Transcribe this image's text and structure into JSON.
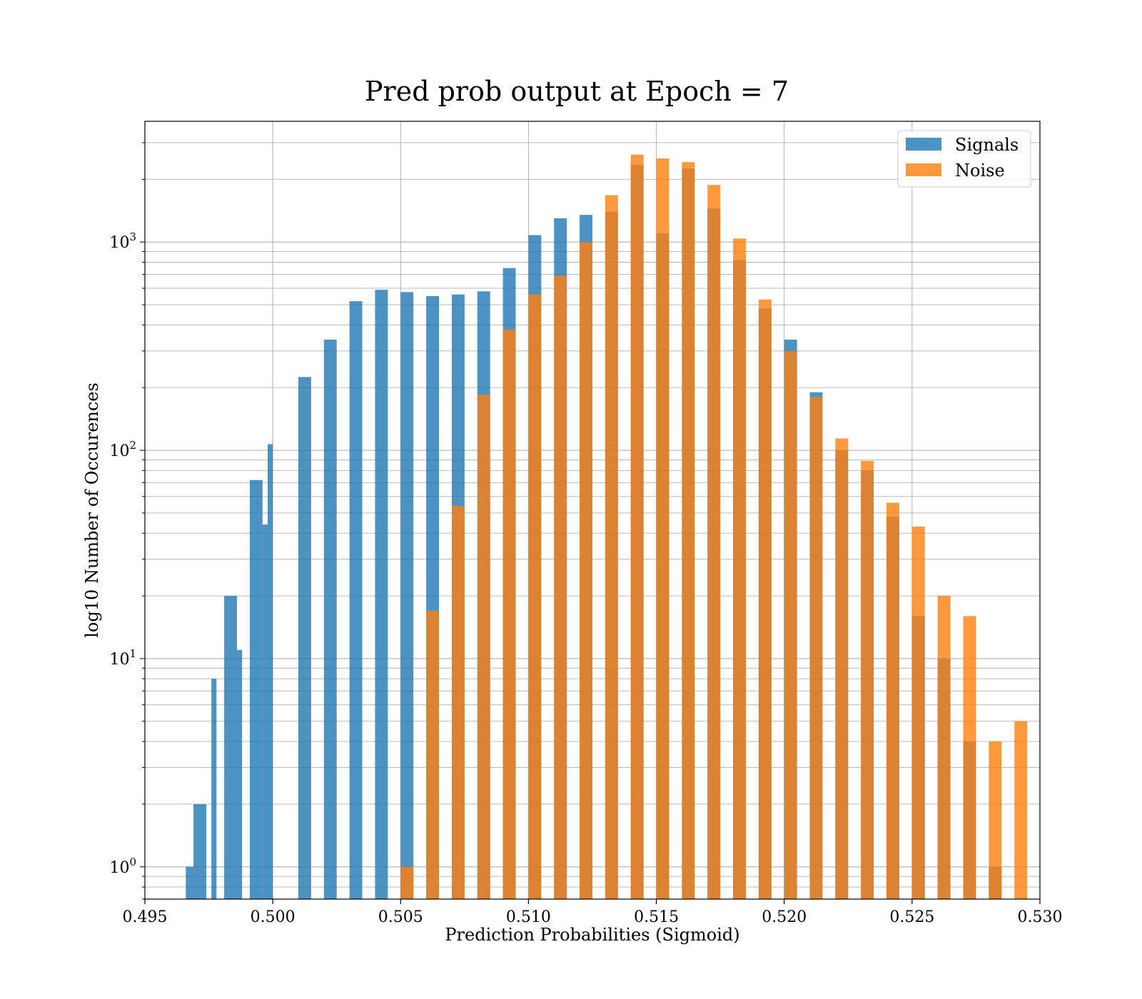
{
  "chart_data": {
    "type": "bar",
    "title": "Pred prob output at Epoch = 7",
    "xlabel": "Prediction Probabilities (Sigmoid)",
    "ylabel": "log10 Number of Occurences",
    "xlim": [
      0.495,
      0.53
    ],
    "ylim": [
      0.7,
      3800
    ],
    "yscale": "log",
    "x_ticks": [
      "0.495",
      "0.500",
      "0.505",
      "0.510",
      "0.515",
      "0.520",
      "0.525",
      "0.530"
    ],
    "y_ticks": [
      {
        "base": "10",
        "exp": "0",
        "value": 1
      },
      {
        "base": "10",
        "exp": "1",
        "value": 10
      },
      {
        "base": "10",
        "exp": "2",
        "value": 100
      },
      {
        "base": "10",
        "exp": "3",
        "value": 1000
      }
    ],
    "grid": true,
    "legend_position": "top-right",
    "series": [
      {
        "name": "Signals",
        "color": "#1f77b4",
        "bins": [
          {
            "x0": 0.4966,
            "x1": 0.4969,
            "value": 1
          },
          {
            "x0": 0.4969,
            "x1": 0.4974,
            "value": 2
          },
          {
            "x0": 0.4976,
            "x1": 0.4978,
            "value": 8
          },
          {
            "x0": 0.4981,
            "x1": 0.4986,
            "value": 20
          },
          {
            "x0": 0.4986,
            "x1": 0.4988,
            "value": 11
          },
          {
            "x0": 0.4991,
            "x1": 0.4996,
            "value": 72
          },
          {
            "x0": 0.4996,
            "x1": 0.4998,
            "value": 44
          },
          {
            "x0": 0.4998,
            "x1": 0.5,
            "value": 107
          },
          {
            "x0": 0.501,
            "x1": 0.5015,
            "value": 225
          },
          {
            "x0": 0.502,
            "x1": 0.5025,
            "value": 340
          },
          {
            "x0": 0.503,
            "x1": 0.5035,
            "value": 520
          },
          {
            "x0": 0.504,
            "x1": 0.5045,
            "value": 590
          },
          {
            "x0": 0.505,
            "x1": 0.5055,
            "value": 575
          },
          {
            "x0": 0.506,
            "x1": 0.5065,
            "value": 550
          },
          {
            "x0": 0.507,
            "x1": 0.5075,
            "value": 560
          },
          {
            "x0": 0.508,
            "x1": 0.5085,
            "value": 580
          },
          {
            "x0": 0.509,
            "x1": 0.5095,
            "value": 750
          },
          {
            "x0": 0.51,
            "x1": 0.5105,
            "value": 1080
          },
          {
            "x0": 0.511,
            "x1": 0.5115,
            "value": 1300
          },
          {
            "x0": 0.512,
            "x1": 0.5125,
            "value": 1350
          },
          {
            "x0": 0.513,
            "x1": 0.5135,
            "value": 1400
          },
          {
            "x0": 0.514,
            "x1": 0.5145,
            "value": 2350
          },
          {
            "x0": 0.515,
            "x1": 0.5155,
            "value": 1100
          },
          {
            "x0": 0.516,
            "x1": 0.5165,
            "value": 2250
          },
          {
            "x0": 0.517,
            "x1": 0.5175,
            "value": 1450
          },
          {
            "x0": 0.518,
            "x1": 0.5185,
            "value": 820
          },
          {
            "x0": 0.519,
            "x1": 0.5195,
            "value": 480
          },
          {
            "x0": 0.52,
            "x1": 0.5205,
            "value": 340
          },
          {
            "x0": 0.521,
            "x1": 0.5215,
            "value": 190
          },
          {
            "x0": 0.522,
            "x1": 0.5225,
            "value": 100
          },
          {
            "x0": 0.523,
            "x1": 0.5235,
            "value": 80
          },
          {
            "x0": 0.524,
            "x1": 0.5245,
            "value": 48
          },
          {
            "x0": 0.525,
            "x1": 0.5255,
            "value": 16
          },
          {
            "x0": 0.526,
            "x1": 0.5265,
            "value": 10
          },
          {
            "x0": 0.527,
            "x1": 0.5275,
            "value": 4
          },
          {
            "x0": 0.528,
            "x1": 0.5285,
            "value": 1
          }
        ]
      },
      {
        "name": "Noise",
        "color": "#ff7f0e",
        "bins": [
          {
            "x0": 0.505,
            "x1": 0.5055,
            "value": 1
          },
          {
            "x0": 0.506,
            "x1": 0.5065,
            "value": 17
          },
          {
            "x0": 0.507,
            "x1": 0.5075,
            "value": 54
          },
          {
            "x0": 0.508,
            "x1": 0.5085,
            "value": 185
          },
          {
            "x0": 0.509,
            "x1": 0.5095,
            "value": 380
          },
          {
            "x0": 0.51,
            "x1": 0.5105,
            "value": 560
          },
          {
            "x0": 0.511,
            "x1": 0.5115,
            "value": 690
          },
          {
            "x0": 0.512,
            "x1": 0.5125,
            "value": 1000
          },
          {
            "x0": 0.513,
            "x1": 0.5135,
            "value": 1680
          },
          {
            "x0": 0.514,
            "x1": 0.5145,
            "value": 2630
          },
          {
            "x0": 0.515,
            "x1": 0.5155,
            "value": 2520
          },
          {
            "x0": 0.516,
            "x1": 0.5165,
            "value": 2420
          },
          {
            "x0": 0.517,
            "x1": 0.5175,
            "value": 1880
          },
          {
            "x0": 0.518,
            "x1": 0.5185,
            "value": 1040
          },
          {
            "x0": 0.519,
            "x1": 0.5195,
            "value": 530
          },
          {
            "x0": 0.52,
            "x1": 0.5205,
            "value": 300
          },
          {
            "x0": 0.521,
            "x1": 0.5215,
            "value": 180
          },
          {
            "x0": 0.522,
            "x1": 0.5225,
            "value": 114
          },
          {
            "x0": 0.523,
            "x1": 0.5235,
            "value": 89
          },
          {
            "x0": 0.524,
            "x1": 0.5245,
            "value": 56
          },
          {
            "x0": 0.525,
            "x1": 0.5255,
            "value": 43
          },
          {
            "x0": 0.526,
            "x1": 0.5265,
            "value": 20
          },
          {
            "x0": 0.527,
            "x1": 0.5275,
            "value": 16
          },
          {
            "x0": 0.528,
            "x1": 0.5285,
            "value": 4
          },
          {
            "x0": 0.529,
            "x1": 0.5295,
            "value": 5
          }
        ]
      }
    ]
  }
}
